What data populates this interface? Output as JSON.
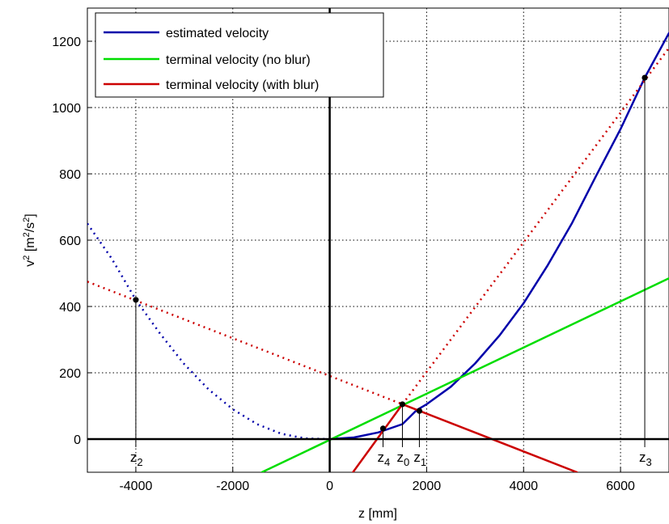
{
  "chart_data": {
    "type": "line",
    "title": "",
    "xlabel": "z [mm]",
    "ylabel": {
      "base": "v",
      "sup": "2",
      "units_prefix": " [m",
      "units_sup1": "2",
      "units_mid": "/s",
      "units_sup2": "2",
      "units_suffix": "]"
    },
    "xlim": [
      -5000,
      7000
    ],
    "ylim": [
      -100,
      1300
    ],
    "xticks": [
      -4000,
      -2000,
      0,
      2000,
      4000,
      6000
    ],
    "yticks": [
      0,
      200,
      400,
      600,
      800,
      1000,
      1200
    ],
    "grid": true,
    "legend_position": "top-left",
    "series": [
      {
        "name": "estimated velocity",
        "color": "#0000aa",
        "style": "solid",
        "x": [
          0,
          500,
          1000,
          1500,
          1800,
          2000,
          2500,
          3000,
          3500,
          4000,
          4500,
          5000,
          5500,
          6000,
          6500,
          7000
        ],
        "y": [
          0,
          5,
          20,
          45,
          88,
          105,
          158,
          228,
          312,
          410,
          525,
          652,
          795,
          935,
          1090,
          1225
        ]
      },
      {
        "name": "",
        "color": "#0000aa",
        "style": "dotted",
        "x": [
          -5000,
          -4500,
          -4000,
          -3500,
          -3000,
          -2500,
          -2000,
          -1500,
          -1000,
          -500,
          0
        ],
        "y": [
          650,
          545,
          420,
          318,
          226,
          150,
          90,
          45,
          16,
          2,
          0
        ]
      },
      {
        "name": "terminal velocity (no blur)",
        "color": "#00dd00",
        "style": "solid",
        "x": [
          -1400,
          7000
        ],
        "y": [
          -100,
          485
        ]
      },
      {
        "name": "terminal velocity (with blur)",
        "color": "#cc0000",
        "style": "solid",
        "x": [
          1500,
          5100
        ],
        "y": [
          105,
          -100
        ]
      },
      {
        "name": "",
        "color": "#cc0000",
        "style": "solid",
        "x": [
          480,
          1500
        ],
        "y": [
          -100,
          105
        ]
      },
      {
        "name": "",
        "color": "#cc0000",
        "style": "dotted",
        "x": [
          -5000,
          1500
        ],
        "y": [
          475,
          105
        ]
      },
      {
        "name": "",
        "color": "#cc0000",
        "style": "dotted",
        "x": [
          1500,
          7000
        ],
        "y": [
          105,
          1180
        ]
      }
    ],
    "points": [
      {
        "label": "z",
        "sub": "0",
        "x": 1500,
        "y": 105
      },
      {
        "label": "z",
        "sub": "1",
        "x": 1850,
        "y": 85
      },
      {
        "label": "z",
        "sub": "2",
        "x": -4000,
        "y": 420
      },
      {
        "label": "z",
        "sub": "3",
        "x": 6500,
        "y": 1090
      },
      {
        "label": "z",
        "sub": "4",
        "x": 1100,
        "y": 32
      }
    ]
  }
}
